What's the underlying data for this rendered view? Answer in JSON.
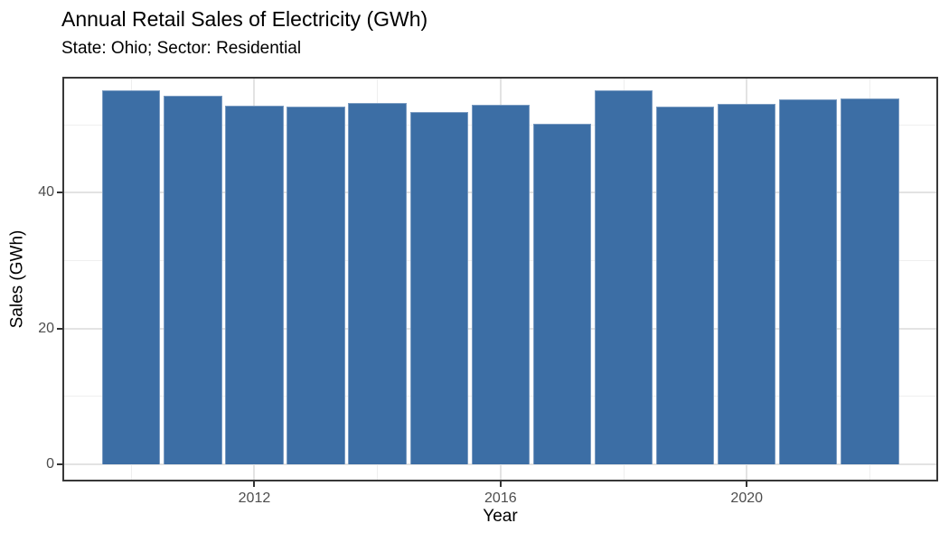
{
  "chart_data": {
    "type": "bar",
    "title": "Annual Retail Sales of Electricity (GWh)",
    "subtitle": "State: Ohio; Sector: Residential",
    "xlabel": "Year",
    "ylabel": "Sales (GWh)",
    "categories": [
      2010,
      2011,
      2012,
      2013,
      2014,
      2015,
      2016,
      2017,
      2018,
      2019,
      2020,
      2021,
      2022
    ],
    "values": [
      55.0,
      54.2,
      52.8,
      52.7,
      53.2,
      51.9,
      52.9,
      50.2,
      55.1,
      52.7,
      53.0,
      53.7,
      53.9
    ],
    "x_major_ticks": [
      2012,
      2016,
      2020
    ],
    "x_minor_gridlines": [
      2010,
      2014,
      2018,
      2022
    ],
    "y_major_ticks": [
      0,
      20,
      40
    ],
    "y_minor_gridlines": [
      10,
      30,
      50
    ],
    "xlim": [
      2008.88,
      2023.11
    ],
    "ylim": [
      -2.53,
      57.05
    ],
    "bar_width": 0.945,
    "grid": "on",
    "legend_position": "none"
  },
  "style": {
    "bar_fill": "#3C6EA5",
    "bar_edge": "#7A9BC1",
    "grid_major": "#e3e3e3",
    "grid_minor": "#efefef",
    "panel_border": "#383838",
    "tick_color": "#333333",
    "tick_label_color": "#4d4d4d",
    "title_color": "#000000",
    "axis_title_color": "#000000",
    "background": "#ffffff"
  }
}
